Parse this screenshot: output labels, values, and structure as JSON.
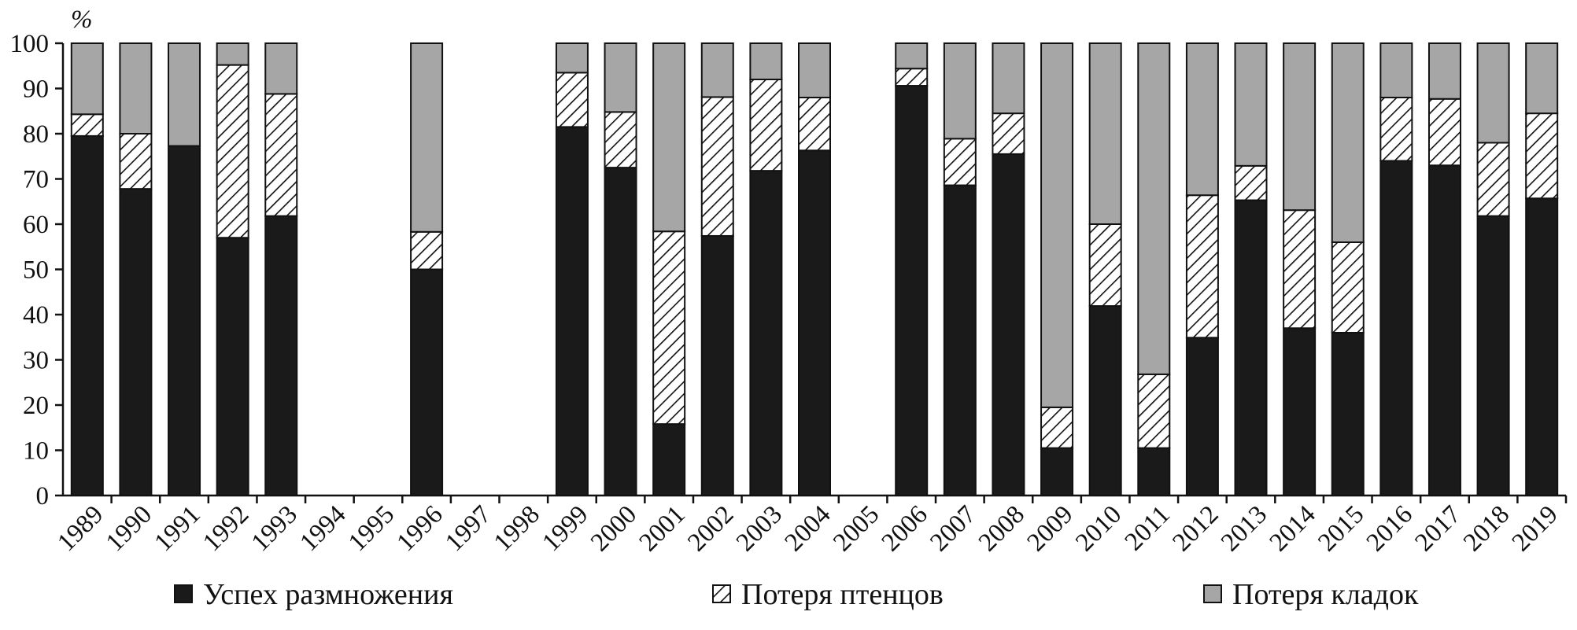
{
  "chart_data": {
    "type": "bar",
    "stacked": true,
    "unit": "%",
    "ylim": [
      0,
      100
    ],
    "yticks": [
      0,
      10,
      20,
      30,
      40,
      50,
      60,
      70,
      80,
      90,
      100
    ],
    "categories": [
      "1989",
      "1990",
      "1991",
      "1992",
      "1993",
      "1994",
      "1995",
      "1996",
      "1997",
      "1998",
      "1999",
      "2000",
      "2001",
      "2002",
      "2003",
      "2004",
      "2005",
      "2006",
      "2007",
      "2008",
      "2009",
      "2010",
      "2011",
      "2012",
      "2013",
      "2014",
      "2015",
      "2016",
      "2017",
      "2018",
      "2019"
    ],
    "series": [
      {
        "name": "Успех размножения",
        "color": "#1a1a1a",
        "pattern": "solid",
        "values": [
          79.5,
          67.8,
          77.3,
          57.0,
          61.8,
          null,
          null,
          50.0,
          null,
          null,
          81.5,
          72.5,
          15.8,
          57.4,
          71.8,
          76.3,
          null,
          90.6,
          68.6,
          75.5,
          10.5,
          41.9,
          10.5,
          34.9,
          65.3,
          37.0,
          36.0,
          74.0,
          73.0,
          61.8,
          65.7
        ]
      },
      {
        "name": "Потеря птенцов",
        "color": "#1a1a1a",
        "pattern": "hatched",
        "values": [
          4.8,
          12.2,
          0,
          38.2,
          27.0,
          null,
          null,
          8.3,
          null,
          null,
          12.0,
          12.3,
          42.6,
          30.7,
          20.2,
          11.7,
          null,
          3.8,
          10.3,
          9.0,
          9.0,
          18.1,
          16.3,
          31.5,
          7.6,
          26.1,
          20.0,
          14.0,
          14.7,
          16.2,
          18.8
        ]
      },
      {
        "name": "Потеря кладок",
        "color": "#a6a6a6",
        "pattern": "solid",
        "values": [
          15.7,
          20.0,
          22.7,
          4.8,
          11.2,
          null,
          null,
          41.7,
          null,
          null,
          6.5,
          15.2,
          41.6,
          11.9,
          8.0,
          12.0,
          null,
          5.6,
          21.1,
          15.5,
          80.5,
          40.0,
          73.2,
          33.6,
          27.1,
          36.9,
          44.0,
          12.0,
          12.3,
          22.0,
          15.5
        ]
      }
    ],
    "legend_position": "bottom",
    "grid": false,
    "x_tick_rotation": -45
  }
}
